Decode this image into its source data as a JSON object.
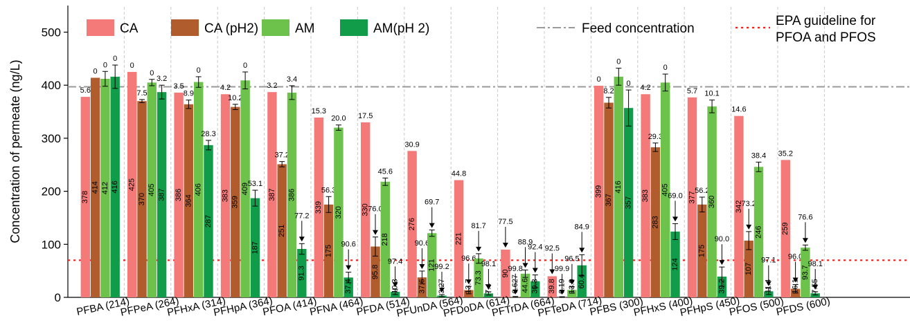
{
  "chart_data": {
    "type": "bar",
    "ylabel": "Concentration of permeate (ng/L)",
    "xlabel": "",
    "ylim": [
      0,
      550
    ],
    "yticks": [
      0,
      100,
      200,
      300,
      400,
      500
    ],
    "categories": [
      "PFBA (214)",
      "PFPeA (264)",
      "PFHxA (314)",
      "PFHpA (364)",
      "PFOA (414)",
      "PFNA (464)",
      "PFDA (514)",
      "PFUnDA (564)",
      "PFDoDA (614)",
      "PFTrDA (664)",
      "PFTeDA (714)",
      "PFBS (300)",
      "PFHxS (400)",
      "PFHpS (450)",
      "PFOS (500)",
      "PFDS (600)"
    ],
    "series": [
      {
        "name": "CA",
        "color": "#f47a7a",
        "values": [
          378,
          425,
          386,
          383,
          387,
          339,
          330,
          276,
          221,
          90,
          39.8,
          399,
          383,
          377,
          342,
          259
        ],
        "labels": [
          "378",
          "425",
          "386",
          "383",
          "387",
          "339",
          "330",
          "276",
          "221",
          "90",
          "39.8",
          "399",
          "383",
          "377",
          "342",
          "259"
        ],
        "errors": [
          0,
          0,
          0,
          0,
          0,
          0,
          0,
          0,
          0,
          0,
          0,
          0,
          0,
          0,
          0,
          0
        ],
        "annotations": [
          "5.6",
          "0",
          "3.5",
          "4.2",
          "3.2",
          "15.3",
          "17.5",
          "30.9",
          "44.8",
          "77.5",
          "92.5",
          "0",
          "4.2",
          "5.7",
          "14.6",
          "35.2"
        ]
      },
      {
        "name": "CA (pH2)",
        "color": "#b05c2c",
        "values": [
          414,
          370,
          364,
          359,
          251,
          175,
          95.8,
          37.6,
          13.7,
          0.627,
          0.19,
          367,
          283,
          175,
          107,
          16.1
        ],
        "labels": [
          "414",
          "370",
          "364",
          "359",
          "251",
          "175",
          "95.8",
          "37.6",
          "13.7",
          "0.627",
          "0.19",
          "367",
          "283",
          "175",
          "107",
          "16.1"
        ],
        "errors": [
          0,
          3,
          8,
          5,
          5,
          15,
          18,
          12,
          7,
          1,
          1,
          10,
          8,
          14,
          17,
          8
        ],
        "annotations": [
          "0",
          "7.5",
          "8.9",
          "10.2",
          "37.2",
          "56.3",
          "76.0",
          "90.6",
          "96.6",
          "99.8",
          "99.9",
          "8.2",
          "29.3",
          "56.2",
          "73.2",
          "96.0"
        ]
      },
      {
        "name": "AM",
        "color": "#6cc24a",
        "values": [
          412,
          405,
          406,
          409,
          386,
          320,
          218,
          121,
          73.3,
          44.6,
          13.9,
          416,
          405,
          360,
          246,
          93.7
        ],
        "labels": [
          "412",
          "405",
          "406",
          "409",
          "386",
          "320",
          "218",
          "121",
          "73.3",
          "44.6",
          "13.9",
          "416",
          "405",
          "360",
          "246",
          "93.7"
        ],
        "errors": [
          14,
          6,
          10,
          16,
          13,
          5,
          7,
          6,
          9,
          7,
          6,
          16,
          16,
          12,
          9,
          5
        ],
        "annotations": [
          "0",
          "0",
          "0",
          "0",
          "3.4",
          "20.0",
          "45.6",
          "69.7",
          "81.7",
          "88.9",
          "96.5",
          "0",
          "0",
          "10.1",
          "38.4",
          "76.6"
        ]
      },
      {
        "name": "AM(pH 2)",
        "color": "#109c48",
        "values": [
          416,
          387,
          287,
          187,
          91.3,
          37.4,
          10.3,
          3.27,
          7.4,
          30.3,
          60.4,
          357,
          124,
          39.2,
          11.4,
          7.55
        ],
        "labels": [
          "416",
          "387",
          "287",
          "187",
          "91.3",
          "37.4",
          "10.3",
          "3.27",
          "7.4",
          "30.3",
          "60.4",
          "357",
          "124",
          "39.2",
          "11.4",
          "7.55"
        ],
        "errors": [
          22,
          13,
          9,
          15,
          10,
          10,
          5,
          2,
          3,
          12,
          20,
          34,
          15,
          18,
          6,
          3
        ],
        "annotations": [
          "0",
          "3.2",
          "28.3",
          "53.1",
          "77.2",
          "90.6",
          "97.4",
          "99.2",
          "98.1",
          "92.4",
          "84.9",
          "0",
          "69.0",
          "90.0",
          "97.1",
          "98.1"
        ]
      }
    ],
    "reference_lines": [
      {
        "name": "Feed concentration",
        "value": 397,
        "color": "#999999",
        "style": "dash-dot"
      },
      {
        "name": "EPA guideline for PFOA and PFOS",
        "value": 70,
        "color": "#e8201e",
        "style": "dotted"
      }
    ],
    "legend_position": "top"
  }
}
